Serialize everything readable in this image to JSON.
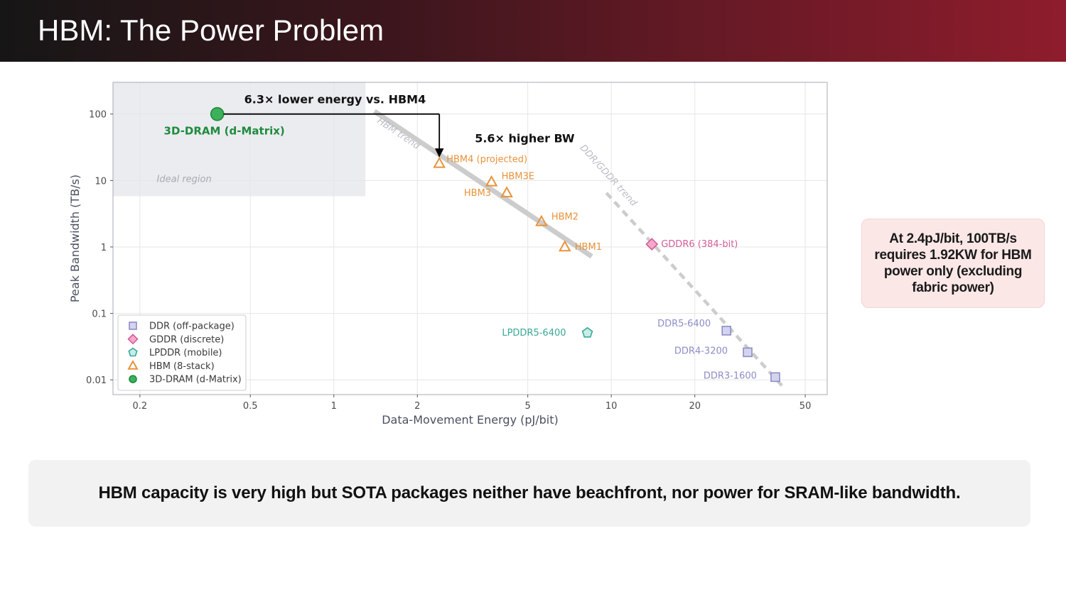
{
  "slide": {
    "title": "HBM: The Power Problem",
    "callout": "At 2.4pJ/bit, 100TB/s requires 1.92KW for HBM power only (excluding fabric power)",
    "footer": "HBM capacity is very high but SOTA packages neither have beachfront, nor power for SRAM-like bandwidth."
  },
  "chart_data": {
    "type": "scatter",
    "xlabel": "Data-Movement Energy (pJ/bit)",
    "ylabel": "Peak Bandwidth (TB/s)",
    "xscale": "log",
    "yscale": "log",
    "xlim": [
      0.16,
      60
    ],
    "ylim": [
      0.006,
      300
    ],
    "xticks": [
      0.2,
      0.5,
      1,
      2,
      5,
      10,
      20,
      50
    ],
    "xtick_labels": [
      "0.2",
      "0.5",
      "1",
      "2",
      "5",
      "10",
      "20",
      "50"
    ],
    "yticks": [
      0.01,
      0.1,
      1,
      10,
      100
    ],
    "ytick_labels": [
      "0.01",
      "0.1",
      "1",
      "10",
      "100"
    ],
    "grid": true,
    "legend_position": "lower-left",
    "series": [
      {
        "name": "DDR (off-package)",
        "marker": "square",
        "color": "#8c8cc8",
        "fill": "#d4d4f0",
        "points": [
          {
            "label": "DDR5-6400",
            "x": 26,
            "y": 0.055
          },
          {
            "label": "DDR4-3200",
            "x": 31,
            "y": 0.026
          },
          {
            "label": "DDR3-1600",
            "x": 39,
            "y": 0.011
          }
        ]
      },
      {
        "name": "GDDR (discrete)",
        "marker": "diamond",
        "color": "#d45c9a",
        "fill": "#f4a8cc",
        "points": [
          {
            "label": "GDDR6 (384-bit)",
            "x": 14,
            "y": 1.1
          }
        ]
      },
      {
        "name": "LPDDR (mobile)",
        "marker": "pentagon",
        "color": "#3aa898",
        "fill": "#c8ece6",
        "points": [
          {
            "label": "LPDDR5-6400",
            "x": 8.2,
            "y": 0.051
          }
        ]
      },
      {
        "name": "HBM (8-stack)",
        "marker": "triangle",
        "color": "#e8923a",
        "fill": "none",
        "points": [
          {
            "label": "HBM4 (projected)",
            "x": 2.4,
            "y": 18
          },
          {
            "label": "HBM3E",
            "x": 3.7,
            "y": 9.5
          },
          {
            "label": "HBM3",
            "x": 4.2,
            "y": 6.5
          },
          {
            "label": "HBM2",
            "x": 5.6,
            "y": 2.4
          },
          {
            "label": "HBM1",
            "x": 6.8,
            "y": 1.0
          }
        ]
      },
      {
        "name": "3D-DRAM (d-Matrix)",
        "marker": "circle",
        "color": "#1f8a3e",
        "fill": "#3cb05a",
        "points": [
          {
            "label": "3D-DRAM (d-Matrix)",
            "x": 0.38,
            "y": 100
          }
        ]
      }
    ],
    "trends": [
      {
        "name": "HBM trend",
        "style": "solid",
        "color": "#cccccc",
        "x": [
          1.4,
          8.5
        ],
        "y": [
          110,
          0.72
        ]
      },
      {
        "name": "DDR/GDDR trend",
        "style": "dashed",
        "color": "#cccccc",
        "x": [
          9.6,
          42
        ],
        "y": [
          6.5,
          0.0075
        ]
      }
    ],
    "region": {
      "label": "Ideal region",
      "x": [
        0.16,
        1.3
      ],
      "y": [
        5.8,
        300
      ]
    },
    "annotations": [
      {
        "text": "6.3× lower energy vs. HBM4"
      },
      {
        "text": "5.6× higher BW"
      }
    ]
  }
}
